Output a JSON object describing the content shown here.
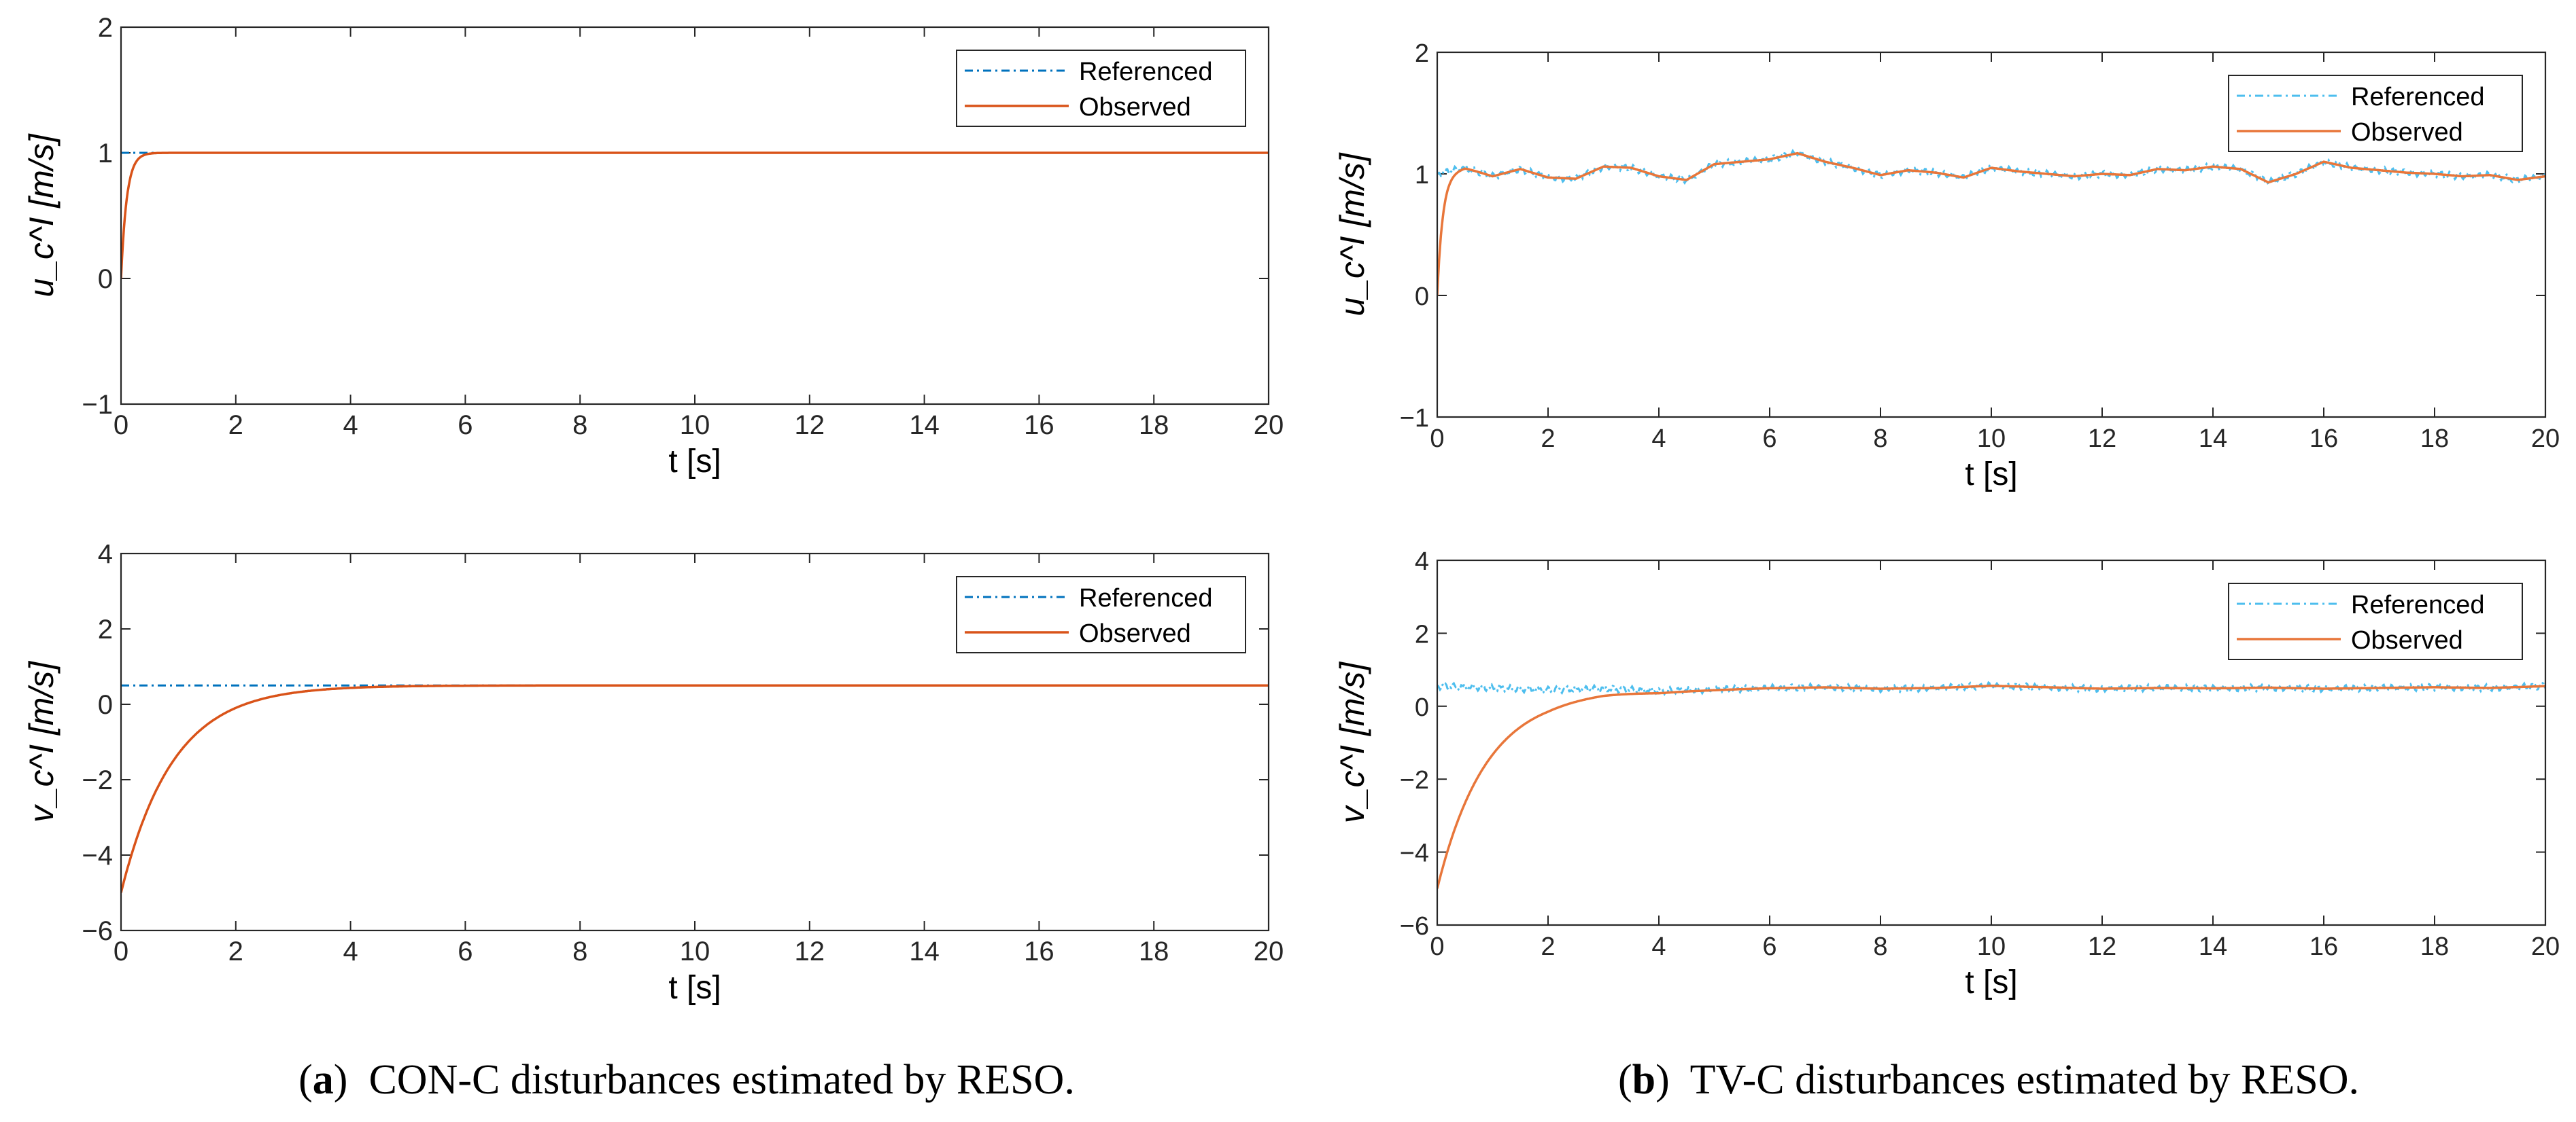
{
  "colors": {
    "referenced": "#0072BD",
    "referenced_noisy": "#4DBEEE",
    "observed": "#D95319",
    "observed_b": "#E8763A",
    "axis": "#262626"
  },
  "legend": {
    "referenced": "Referenced",
    "observed": "Observed"
  },
  "captions": {
    "a": {
      "label": "a",
      "text": "CON-C disturbances estimated by RESO."
    },
    "b": {
      "label": "b",
      "text": "TV-C disturbances estimated by RESO."
    }
  },
  "chart_data": [
    {
      "id": "a-top",
      "type": "line",
      "panel": "a",
      "xlabel": "t [s]",
      "ylabel": "u_c^I [m/s]",
      "xlim": [
        0,
        20
      ],
      "ylim": [
        -1,
        2
      ],
      "xticks": [
        0,
        2,
        4,
        6,
        8,
        10,
        12,
        14,
        16,
        18,
        20
      ],
      "yticks": [
        -1,
        0,
        1,
        2
      ],
      "legend_position": "top-right",
      "series": [
        {
          "name": "Referenced",
          "style": "dash-dot",
          "constant": 1.0
        },
        {
          "name": "Observed",
          "style": "solid",
          "start": 0,
          "target": 1.0,
          "time_constant": 0.1
        }
      ]
    },
    {
      "id": "a-bottom",
      "type": "line",
      "panel": "a",
      "xlabel": "t [s]",
      "ylabel": "v_c^I [m/s]",
      "xlim": [
        0,
        20
      ],
      "ylim": [
        -6,
        4
      ],
      "xticks": [
        0,
        2,
        4,
        6,
        8,
        10,
        12,
        14,
        16,
        18,
        20
      ],
      "yticks": [
        -6,
        -4,
        -2,
        0,
        2,
        4
      ],
      "legend_position": "top-right",
      "series": [
        {
          "name": "Referenced",
          "style": "dash-dot",
          "constant": 0.5
        },
        {
          "name": "Observed",
          "style": "solid",
          "start": -5,
          "target": 0.5,
          "time_constant": 0.9
        }
      ]
    },
    {
      "id": "b-top",
      "type": "line",
      "panel": "b",
      "xlabel": "t [s]",
      "ylabel": "u_c^I [m/s]",
      "xlim": [
        0,
        20
      ],
      "ylim": [
        -1,
        2
      ],
      "xticks": [
        0,
        2,
        4,
        6,
        8,
        10,
        12,
        14,
        16,
        18,
        20
      ],
      "yticks": [
        -1,
        0,
        1,
        2
      ],
      "legend_position": "top-right",
      "series": [
        {
          "name": "Referenced",
          "style": "dash-dot-noisy",
          "x": [
            0,
            0.5,
            1,
            1.5,
            2,
            2.5,
            3,
            3.5,
            4,
            4.5,
            5,
            5.5,
            6,
            6.5,
            7,
            7.5,
            8,
            8.5,
            9,
            9.5,
            10,
            10.5,
            11,
            11.5,
            12,
            12.5,
            13,
            13.5,
            14,
            14.5,
            15,
            15.5,
            16,
            16.5,
            17,
            17.5,
            18,
            18.5,
            19,
            19.5,
            20
          ],
          "y": [
            1.0,
            1.05,
            0.98,
            1.04,
            0.97,
            0.96,
            1.06,
            1.05,
            0.98,
            0.95,
            1.08,
            1.1,
            1.12,
            1.17,
            1.1,
            1.05,
            0.99,
            1.03,
            1.01,
            0.97,
            1.05,
            1.02,
            1.0,
            0.98,
            1.0,
            0.99,
            1.04,
            1.03,
            1.06,
            1.04,
            0.93,
            1.0,
            1.1,
            1.05,
            1.03,
            1.01,
            1.0,
            0.98,
            0.99,
            0.95,
            0.98
          ]
        },
        {
          "name": "Observed",
          "style": "solid",
          "start": 0,
          "time_constant": 0.1,
          "follows": "Referenced"
        }
      ]
    },
    {
      "id": "b-bottom",
      "type": "line",
      "panel": "b",
      "xlabel": "t [s]",
      "ylabel": "v_c^I [m/s]",
      "xlim": [
        0,
        20
      ],
      "ylim": [
        -6,
        4
      ],
      "xticks": [
        0,
        2,
        4,
        6,
        8,
        10,
        12,
        14,
        16,
        18,
        20
      ],
      "yticks": [
        -6,
        -4,
        -2,
        0,
        2,
        4
      ],
      "legend_position": "top-right",
      "series": [
        {
          "name": "Referenced",
          "style": "dash-dot-noisy",
          "x": [
            0,
            1,
            2,
            3,
            4,
            5,
            6,
            7,
            8,
            9,
            10,
            11,
            12,
            13,
            14,
            15,
            16,
            17,
            18,
            19,
            20
          ],
          "y": [
            0.55,
            0.5,
            0.45,
            0.48,
            0.42,
            0.46,
            0.5,
            0.52,
            0.48,
            0.5,
            0.56,
            0.52,
            0.48,
            0.5,
            0.49,
            0.51,
            0.48,
            0.5,
            0.52,
            0.5,
            0.55
          ]
        },
        {
          "name": "Observed",
          "style": "solid",
          "start": -5,
          "time_constant": 0.9,
          "follows": "Referenced"
        }
      ]
    }
  ]
}
